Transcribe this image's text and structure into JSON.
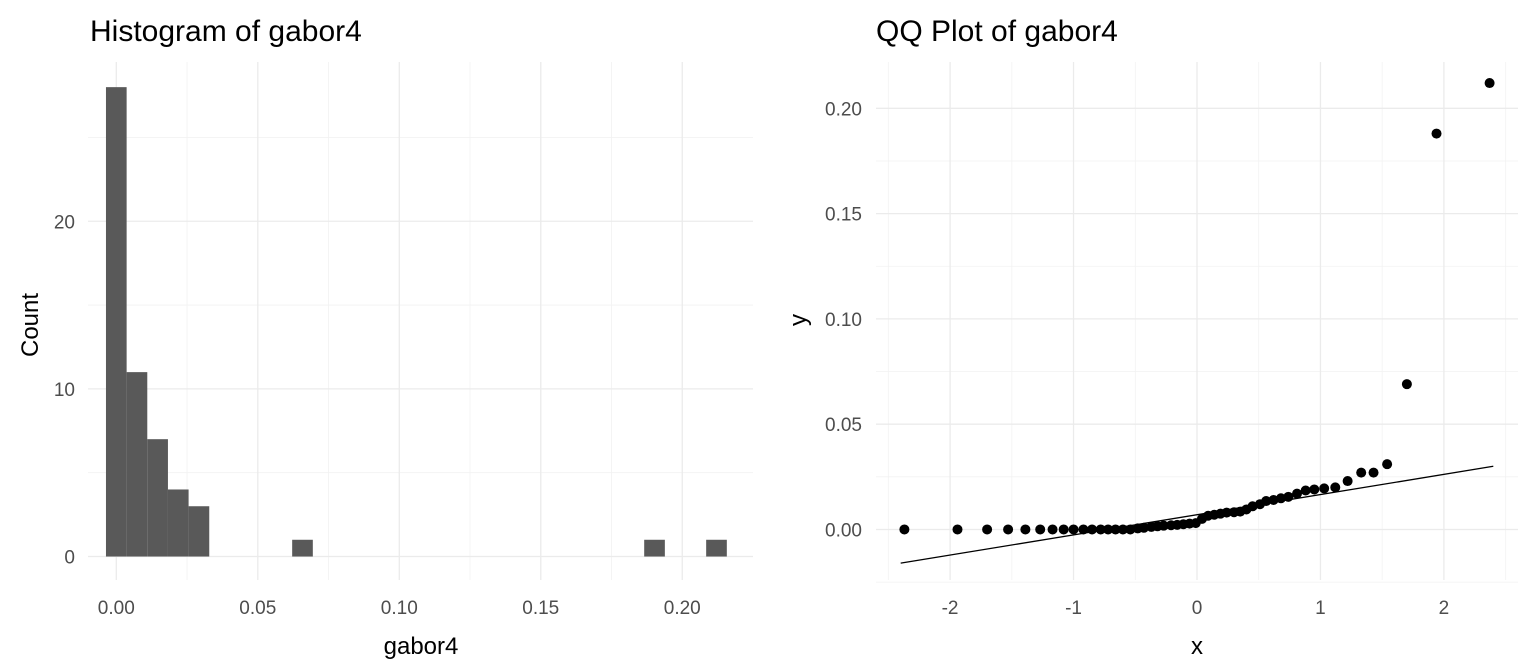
{
  "chart_data": [
    {
      "type": "bar",
      "title": "Histogram of gabor4",
      "xlabel": "gabor4",
      "ylabel": "Count",
      "xlim": [
        -0.01,
        0.225
      ],
      "ylim": [
        -1.4,
        29.5
      ],
      "x_ticks": [
        0,
        0.05,
        0.1,
        0.15,
        0.2
      ],
      "x_tick_labels": [
        "0.00",
        "0.05",
        "0.10",
        "0.15",
        "0.20"
      ],
      "y_ticks": [
        0,
        10,
        20
      ],
      "y_tick_labels": [
        "0",
        "10",
        "20"
      ],
      "bin_width": 0.0073,
      "bins": [
        {
          "x": 0.0,
          "count": 28
        },
        {
          "x": 0.0073,
          "count": 11
        },
        {
          "x": 0.0146,
          "count": 7
        },
        {
          "x": 0.0219,
          "count": 4
        },
        {
          "x": 0.0292,
          "count": 3
        },
        {
          "x": 0.0658,
          "count": 1
        },
        {
          "x": 0.1902,
          "count": 1
        },
        {
          "x": 0.2121,
          "count": 1
        }
      ],
      "bar_color": "#595959",
      "grid": true
    },
    {
      "type": "scatter",
      "title": "QQ Plot of gabor4",
      "xlabel": "x",
      "ylabel": "y",
      "xlim": [
        -2.6,
        2.6
      ],
      "ylim": [
        -0.024,
        0.222
      ],
      "x_ticks": [
        -2,
        -1,
        0,
        1,
        2
      ],
      "x_tick_labels": [
        "-2",
        "-1",
        "0",
        "1",
        "2"
      ],
      "y_ticks": [
        0,
        0.05,
        0.1,
        0.15,
        0.2
      ],
      "y_tick_labels": [
        "0.00",
        "0.05",
        "0.10",
        "0.15",
        "0.20"
      ],
      "points": [
        [
          -2.37,
          0.0
        ],
        [
          -1.94,
          0.0
        ],
        [
          -1.7,
          0.0
        ],
        [
          -1.53,
          0.0
        ],
        [
          -1.39,
          0.0
        ],
        [
          -1.27,
          0.0
        ],
        [
          -1.17,
          0.0
        ],
        [
          -1.08,
          0.0
        ],
        [
          -1.0,
          0.0
        ],
        [
          -0.92,
          0.0
        ],
        [
          -0.85,
          0.0
        ],
        [
          -0.78,
          0.0
        ],
        [
          -0.72,
          0.0
        ],
        [
          -0.66,
          0.0
        ],
        [
          -0.6,
          0.0
        ],
        [
          -0.54,
          0.0
        ],
        [
          -0.48,
          0.0005
        ],
        [
          -0.43,
          0.0008
        ],
        [
          -0.37,
          0.0012
        ],
        [
          -0.32,
          0.0015
        ],
        [
          -0.27,
          0.0018
        ],
        [
          -0.21,
          0.002
        ],
        [
          -0.16,
          0.0022
        ],
        [
          -0.11,
          0.0025
        ],
        [
          -0.06,
          0.0028
        ],
        [
          -0.01,
          0.003
        ],
        [
          0.04,
          0.005
        ],
        [
          0.09,
          0.0065
        ],
        [
          0.14,
          0.007
        ],
        [
          0.19,
          0.0075
        ],
        [
          0.24,
          0.008
        ],
        [
          0.3,
          0.0082
        ],
        [
          0.35,
          0.0085
        ],
        [
          0.4,
          0.0095
        ],
        [
          0.45,
          0.011
        ],
        [
          0.51,
          0.012
        ],
        [
          0.56,
          0.0135
        ],
        [
          0.62,
          0.014
        ],
        [
          0.68,
          0.0148
        ],
        [
          0.74,
          0.0155
        ],
        [
          0.81,
          0.017
        ],
        [
          0.88,
          0.0185
        ],
        [
          0.95,
          0.019
        ],
        [
          1.03,
          0.0195
        ],
        [
          1.12,
          0.02
        ],
        [
          1.22,
          0.023
        ],
        [
          1.33,
          0.027
        ],
        [
          1.43,
          0.027
        ],
        [
          1.54,
          0.031
        ],
        [
          1.7,
          0.069
        ],
        [
          1.94,
          0.188
        ],
        [
          2.37,
          0.212
        ]
      ],
      "reference_line": {
        "x": [
          -2.4,
          2.4
        ],
        "y": [
          -0.016,
          0.03
        ]
      },
      "point_color": "#000000",
      "grid": true
    }
  ]
}
